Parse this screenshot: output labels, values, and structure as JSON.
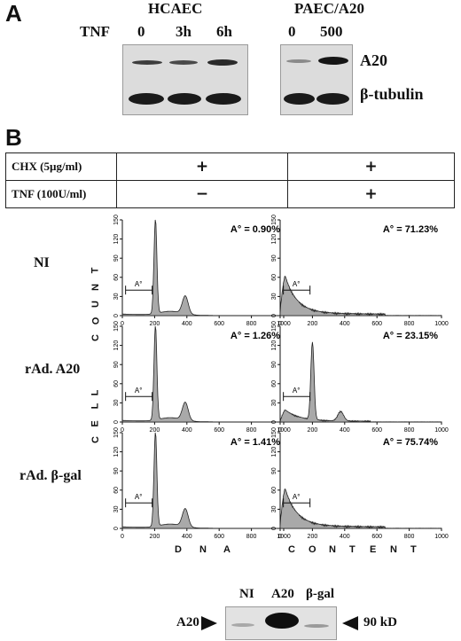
{
  "panelA": {
    "letter": "A",
    "treatment_label": "TNF",
    "hcaec_title": "HCAEC",
    "hcaec_lanes": [
      "0",
      "3h",
      "6h"
    ],
    "paec_title": "PAEC/A20",
    "paec_lanes": [
      "0",
      "500"
    ],
    "band_labels": [
      "A20",
      "β-tubulin"
    ]
  },
  "panelB": {
    "letter": "B",
    "table_rows": [
      {
        "label": "CHX (5µg/ml)",
        "col1": "+",
        "col2": "+"
      },
      {
        "label": "TNF (100U/ml)",
        "col1": "−",
        "col2": "+"
      }
    ],
    "row_labels": [
      "NI",
      "rAd. A20",
      "rAd. β-gal"
    ],
    "y_axis_letters": [
      "C",
      "E",
      "L",
      "L",
      "C",
      "O",
      "U",
      "N",
      "T"
    ],
    "x_axis_letters": [
      "D",
      "N",
      "A",
      "C",
      "O",
      "N",
      "T",
      "E",
      "N",
      "T"
    ],
    "gate_label": "A°",
    "y_ticks": [
      "0",
      "30",
      "60",
      "90",
      "120",
      "150"
    ],
    "x_ticks": [
      "0",
      "200",
      "400",
      "600",
      "800",
      "1000"
    ],
    "histograms": [
      {
        "annotation": "A° = 0.90%",
        "shape": "g0g1"
      },
      {
        "annotation": "A° = 71.23%",
        "shape": "apoptotic"
      },
      {
        "annotation": "A° = 1.26%",
        "shape": "g0g1"
      },
      {
        "annotation": "A° = 23.15%",
        "shape": "partial"
      },
      {
        "annotation": "A° = 1.41%",
        "shape": "g0g1"
      },
      {
        "annotation": "A° = 75.74%",
        "shape": "apoptotic"
      }
    ]
  },
  "panelC": {
    "lanes": [
      "NI",
      "A20",
      "β-gal"
    ],
    "left_label": "A20",
    "right_label": "90 kD"
  }
}
